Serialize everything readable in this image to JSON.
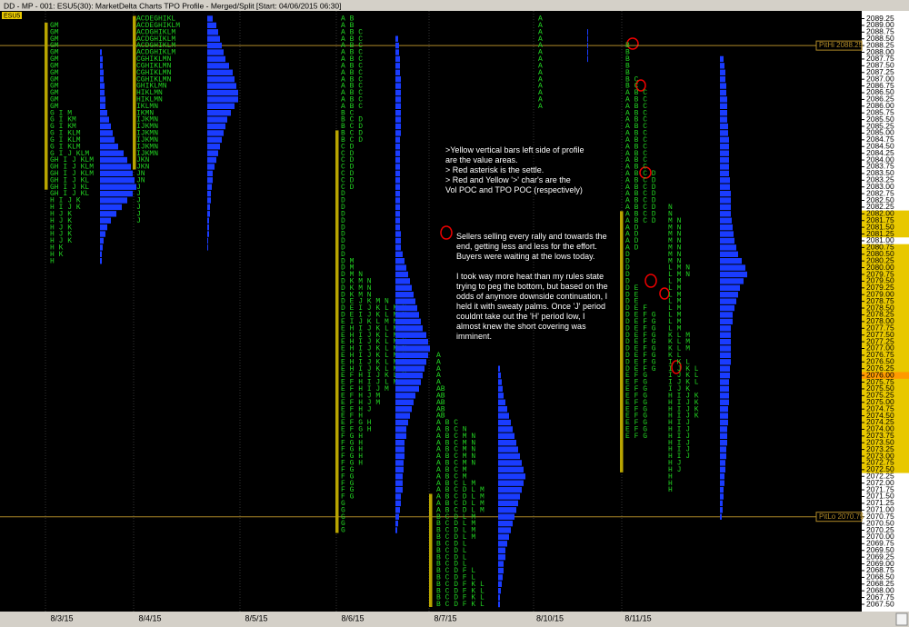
{
  "window": {
    "title": "DD - MP - 001: ESU5(30): MarketDelta Charts TPO Profile - Merged/Split [Start: 04/06/2015 06:30]",
    "symbol_tag": "ESU5"
  },
  "price_axis": [
    "2089.25",
    "2089.00",
    "2088.75",
    "2088.50",
    "2088.25",
    "2088.00",
    "2087.75",
    "2087.50",
    "2087.25",
    "2087.00",
    "2086.75",
    "2086.50",
    "2086.25",
    "2086.00",
    "2085.75",
    "2085.50",
    "2085.25",
    "2085.00",
    "2084.75",
    "2084.50",
    "2084.25",
    "2084.00",
    "2083.75",
    "2083.50",
    "2083.25",
    "2083.00",
    "2082.75",
    "2082.50",
    "2082.25",
    "2082.00",
    "2081.75",
    "2081.50",
    "2081.25",
    "2081.00",
    "2080.75",
    "2080.50",
    "2080.25",
    "2080.00",
    "2079.75",
    "2079.50",
    "2079.25",
    "2079.00",
    "2078.75",
    "2078.50",
    "2078.25",
    "2078.00",
    "2077.75",
    "2077.50",
    "2077.25",
    "2077.00",
    "2076.75",
    "2076.50",
    "2076.25",
    "2076.00",
    "2075.75",
    "2075.50",
    "2075.25",
    "2075.00",
    "2074.75",
    "2074.50",
    "2074.25",
    "2074.00",
    "2073.75",
    "2073.50",
    "2073.25",
    "2073.00",
    "2072.75",
    "2072.50",
    "2072.25",
    "2072.00",
    "2071.75",
    "2071.50",
    "2071.25",
    "2071.00",
    "2070.75",
    "2070.50",
    "2070.25",
    "2070.00",
    "2069.75",
    "2069.50",
    "2069.25",
    "2069.00",
    "2068.75",
    "2068.50",
    "2068.25",
    "2068.00",
    "2067.75",
    "2067.50"
  ],
  "dates": [
    "8/3/15",
    "8/4/15",
    "8/5/15",
    "8/6/15",
    "8/7/15",
    "8/10/15",
    "8/11/15"
  ],
  "levels": [
    "PitHi 2088.25",
    "PitLo 2070.75"
  ],
  "profiles": [
    {
      "rows": [
        "GM",
        "GM",
        "GM",
        "GM",
        "GM",
        "GM",
        "GM",
        "GM",
        "GM",
        "GM",
        "GM",
        "GM",
        "GM",
        "G I M",
        "G I KM",
        "G I KM",
        "G I KLM",
        "G I KLM",
        "G I KLM",
        "G I J KLM",
        "GH I J KLM",
        "GH I J KLM",
        "GH I J KLM",
        "GH I J KL",
        "GH I J KL",
        "GH I J KL",
        "H I J K",
        "H I J K",
        "H J K",
        "H J K",
        "H J K",
        "H J K",
        "H J K",
        "H K",
        "H K",
        "H"
      ],
      "volume": [
        2,
        3,
        3,
        4,
        4,
        5,
        5,
        6,
        6,
        8,
        10,
        12,
        14,
        16,
        20,
        26,
        30,
        34,
        36,
        38,
        40,
        36,
        30,
        24,
        18,
        12,
        8,
        6,
        4,
        3,
        2,
        2
      ]
    },
    {
      "rows": [
        "ACDEGHIKL",
        "ACDEGHIKLM",
        "ACDGHIKLM",
        "ACDGHIKLM",
        "ACDGHIKLM",
        "ACDGHIKLM",
        "CGHIKLMN",
        "CGHIKLMN",
        "CGHIKLMN",
        "CGHIKLMN",
        "GHIKLMN",
        "HIKLMN",
        "HIKLMN",
        "IKLMN",
        "IKMN",
        "IJKMN",
        "IJKMN",
        "IJKMN",
        "IJKMN",
        "IJKMN",
        "IJKMN",
        "JKN",
        "JKN",
        "JN",
        "JN",
        "J",
        "J",
        "J",
        "J",
        "J",
        "J"
      ],
      "volume": [
        6,
        10,
        12,
        14,
        16,
        18,
        20,
        24,
        28,
        30,
        32,
        34,
        34,
        30,
        26,
        22,
        20,
        18,
        16,
        14,
        12,
        10,
        8,
        6,
        6,
        5,
        4,
        4,
        3,
        3,
        2,
        2,
        2,
        1,
        1
      ]
    },
    {
      "rows": [
        "A B",
        "A B",
        "A B C",
        "A B C",
        "A B C",
        "A B C",
        "A B C",
        "A B C",
        "A B C",
        "A B C",
        "A B C",
        "A B C",
        "A B C",
        "A B C",
        "B C",
        "B C D",
        "B C D",
        "B C D",
        "B C D",
        "C D",
        "C D",
        "C D",
        "C D",
        "C D",
        "C D",
        "C D",
        "D",
        "D",
        "D",
        "D",
        "D",
        "D",
        "D",
        "D",
        "D",
        "D",
        "D M",
        "D M",
        "D M N",
        "D K M N",
        "D K M N",
        "D K M N",
        "D E J K M N",
        "D E I J K L M N",
        "D E I J K L M N",
        "E I J K L M N",
        "E H I J K L M N",
        "E H I J K L M N",
        "E H I J K L M N",
        "E H I J K L M N",
        "E H I J K L M N",
        "E H I J K L M N",
        "E H I J K L M",
        "E F H I J K L M",
        "E F H I J L M",
        "E F H I J M",
        "E F H J M",
        "E F H J M",
        "E F H J",
        "E F H",
        "E F G H",
        "E F G H",
        "F G H",
        "F G H",
        "F G H",
        "F G H",
        "F G H",
        "F G",
        "F G",
        "F G",
        "F G",
        "F G",
        "G",
        "G",
        "G",
        "G",
        "G"
      ],
      "volume": [
        3,
        4,
        4,
        5,
        5,
        5,
        6,
        6,
        6,
        6,
        6,
        6,
        6,
        6,
        6,
        5,
        5,
        5,
        5,
        5,
        5,
        5,
        5,
        5,
        5,
        5,
        5,
        5,
        5,
        6,
        6,
        6,
        8,
        10,
        12,
        14,
        16,
        18,
        20,
        22,
        24,
        26,
        28,
        30,
        34,
        36,
        38,
        36,
        34,
        32,
        30,
        28,
        26,
        22,
        20,
        18,
        16,
        14,
        12,
        12,
        10,
        10,
        10,
        9,
        9,
        8,
        8,
        8,
        6,
        6,
        5,
        4,
        3,
        2
      ]
    },
    {
      "rows": [
        "A",
        "A",
        "A",
        "A",
        "A",
        "AB",
        "AB",
        "AB",
        "AB",
        "AB",
        "A B C",
        "A B C N",
        "A B C M N",
        "A B C M N",
        "A B C M N",
        "A B C M N",
        "A B C M N",
        "A B C M",
        "A B C M",
        "A B C L M",
        "A B C D L M",
        "A B C D L M",
        "A B C D L M",
        "A B C D L M",
        "B C D L M",
        "B C D L M",
        "B C D L M",
        "B C D L M",
        "B C D L",
        "B C D L",
        "B C D L",
        "B C D L",
        "B C D F L",
        "B C D F L",
        "B C D F K L",
        "B C D F K L",
        "B C D F K L",
        "B C D F K L"
      ],
      "volume": [
        2,
        3,
        4,
        5,
        6,
        8,
        10,
        12,
        14,
        16,
        18,
        20,
        22,
        24,
        26,
        28,
        30,
        28,
        26,
        24,
        22,
        20,
        18,
        16,
        14,
        12,
        10,
        8,
        8,
        6,
        6,
        5,
        4,
        3,
        2,
        2
      ]
    },
    {
      "rows": [
        "A",
        "A",
        "A",
        "A",
        "A",
        "A",
        "A",
        "A",
        "A",
        "A",
        "A",
        "A",
        "A",
        "A"
      ],
      "volume": [
        1,
        1,
        1,
        1,
        1
      ]
    },
    {
      "rows": [
        "B",
        "B",
        "B",
        "B",
        "B",
        "B C",
        "B C",
        "A B C",
        "A B C",
        "A B C",
        "A B C",
        "A B C",
        "A B C",
        "A B C",
        "A B C",
        "A B C",
        "A B C",
        "A B C",
        "A B C",
        "A B C D",
        "A B C D",
        "A B C D",
        "A B C D",
        "A B C D",
        "A B C D",
        "A B C D",
        "A B C D",
        "A D",
        "A D",
        "A D",
        "A D",
        "D",
        "D",
        "D",
        "D",
        "D",
        "D E",
        "D E",
        "D E",
        "D E F",
        "D E F G",
        "D E F G",
        "D E F G",
        "D E F G",
        "D E F G",
        "D E F G",
        "D E F G",
        "D E F G",
        "D E F G",
        "E F G",
        "E F G",
        "E F G",
        "E F G",
        "E F G",
        "E F G",
        "E F G",
        "E F G",
        "E F G",
        "E F G"
      ]
    },
    {
      "rows": [
        "N",
        "N",
        "M N",
        "M N",
        "M N",
        "M N",
        "M N",
        "M N",
        "M N",
        "L M N",
        "L M N",
        "L M",
        "L M",
        "L M",
        "L M",
        "L M",
        "L M",
        "L M",
        "L M",
        "K L M",
        "K L M",
        "K L M",
        "K L",
        "I K L",
        "I J K L",
        "I J K L",
        "I J K L",
        "I J K",
        "H I J K",
        "H I J K",
        "H I J K",
        "H I J K",
        "H I J",
        "H I J",
        "H I J",
        "H I J",
        "H I J",
        "H I J",
        "H J",
        "H J",
        "H",
        "H",
        "H"
      ],
      "volume": [
        4,
        5,
        6,
        6,
        7,
        7,
        8,
        8,
        8,
        8,
        9,
        9,
        10,
        10,
        10,
        10,
        10,
        10,
        11,
        11,
        12,
        12,
        12,
        12,
        13,
        14,
        15,
        16,
        18,
        20,
        24,
        28,
        30,
        26,
        22,
        20,
        18,
        16,
        14,
        14,
        12,
        12,
        12,
        12,
        12,
        12,
        11,
        11,
        10,
        10,
        10,
        10,
        9,
        9,
        9,
        8,
        8,
        8,
        7,
        7,
        6,
        6,
        5,
        5,
        4,
        4,
        3,
        3,
        2
      ]
    }
  ],
  "notes": {
    "legend": [
      ">Yellow vertical bars left side of profile",
      "are the value areas.",
      "> Red asterisk is the settle.",
      "> Red and Yellow '>' char's are the",
      "Vol POC and TPO POC (respectively)"
    ],
    "commentary": [
      [
        "Sellers selling every rally and towards the",
        "end, getting less and less for the effort.",
        "Buyers were waiting at the lows today."
      ],
      [
        "I took way more heat than my rules state",
        "trying to peg the bottom, but based on the",
        "odds of anymore downside continuation, I",
        "held it with sweaty palms. Once 'J' period",
        "couldnt take out the 'H' period low, I",
        "almost knew the short covering was",
        "imminent."
      ]
    ]
  }
}
